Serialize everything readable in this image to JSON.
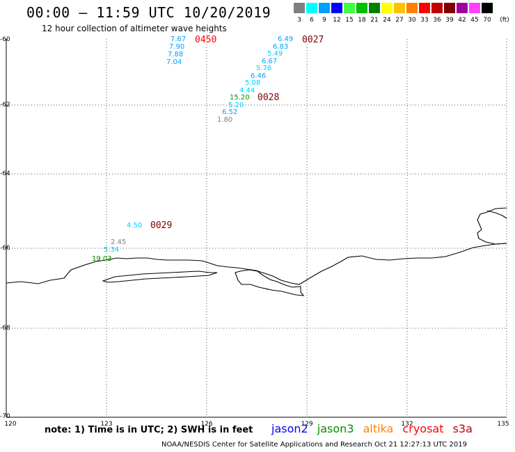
{
  "header": {
    "title": "00:00 – 11:59 UTC 10/20/2019",
    "subtitle": "12 hour collection of altimeter wave heights"
  },
  "legend": {
    "unit": "(ft)",
    "bins": [
      {
        "label": "3",
        "color": "#808080"
      },
      {
        "label": "6",
        "color": "#00ffff"
      },
      {
        "label": "9",
        "color": "#00a0ff"
      },
      {
        "label": "12",
        "color": "#0000ff"
      },
      {
        "label": "15",
        "color": "#40ff40"
      },
      {
        "label": "18",
        "color": "#00c000"
      },
      {
        "label": "21",
        "color": "#008000"
      },
      {
        "label": "24",
        "color": "#ffff00"
      },
      {
        "label": "27",
        "color": "#ffc000"
      },
      {
        "label": "30",
        "color": "#ff8000"
      },
      {
        "label": "33",
        "color": "#ff0000"
      },
      {
        "label": "36",
        "color": "#c00000"
      },
      {
        "label": "39",
        "color": "#800000"
      },
      {
        "label": "42",
        "color": "#a000a0"
      },
      {
        "label": "45",
        "color": "#ff40ff"
      },
      {
        "label": "70",
        "color": "#000000"
      }
    ]
  },
  "axes": {
    "lat_ticks": [
      "-60",
      "-62",
      "-64",
      "-66",
      "-68",
      "-70"
    ],
    "lon_ticks": [
      "120",
      "123",
      "126",
      "129",
      "132",
      "135"
    ]
  },
  "observations": [
    {
      "value": "7.67",
      "color": "#00a0ff"
    },
    {
      "value": "7.90",
      "color": "#00a0ff"
    },
    {
      "value": "7.88",
      "color": "#00a0ff"
    },
    {
      "value": "7.04",
      "color": "#00a0ff"
    },
    {
      "value": "6.49",
      "color": "#00a0ff"
    },
    {
      "value": "6.83",
      "color": "#00a0ff"
    },
    {
      "value": "5.49",
      "color": "#00ccff"
    },
    {
      "value": "6.67",
      "color": "#00a0ff"
    },
    {
      "value": "5.76",
      "color": "#00ccff"
    },
    {
      "value": "6.46",
      "color": "#00a0ff"
    },
    {
      "value": "5.08",
      "color": "#00ccff"
    },
    {
      "value": "4.44",
      "color": "#00ccff"
    },
    {
      "value": "15.20",
      "color": "#009000"
    },
    {
      "value": "5.20",
      "color": "#00ccff"
    },
    {
      "value": "6.52",
      "color": "#00a0ff"
    },
    {
      "value": "1.80",
      "color": "#808080"
    },
    {
      "value": "4.50",
      "color": "#00ccff"
    },
    {
      "value": "2.45",
      "color": "#808080"
    },
    {
      "value": "5.34",
      "color": "#00ccff"
    },
    {
      "value": "19.03",
      "color": "#008000"
    }
  ],
  "time_labels": [
    {
      "value": "0450",
      "color": "#ff0000"
    },
    {
      "value": "0027",
      "color": "#800000"
    },
    {
      "value": "0028",
      "color": "#800000"
    },
    {
      "value": "0029",
      "color": "#800000"
    }
  ],
  "footer": {
    "note": "note: 1) Time is in UTC; 2) SWH is in feet",
    "satellites": [
      {
        "name": "jason2",
        "color": "#0000ff"
      },
      {
        "name": "jason3",
        "color": "#009000"
      },
      {
        "name": "altika",
        "color": "#ff8000"
      },
      {
        "name": "cryosat",
        "color": "#ff0000"
      },
      {
        "name": "s3a",
        "color": "#c00000"
      }
    ],
    "credit": "NOAA/NESDIS Center for Satellite Applications and Research    Oct 21 12:27:13 UTC 2019"
  }
}
